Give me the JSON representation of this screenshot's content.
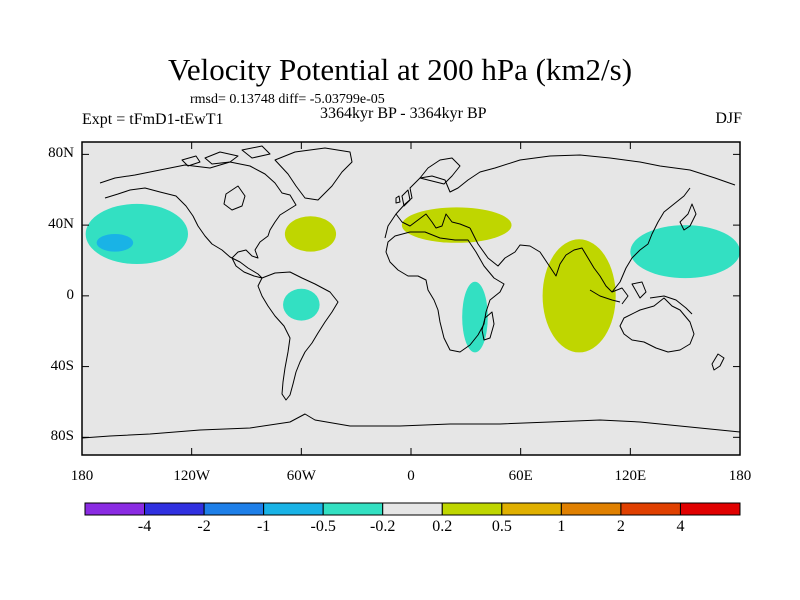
{
  "title": "Velocity Potential at 200 hPa (km2/s)",
  "stats": "rmsd= 0.13748 diff= -5.03799e-05",
  "experiment": "Expt = tFmD1-tEwT1",
  "period": "3364kyr BP - 3364kyr BP",
  "season": "DJF",
  "map": {
    "background_color": "#e6e6e6",
    "lat_ticks": [
      {
        "label": "80N",
        "lat": 80
      },
      {
        "label": "40N",
        "lat": 40
      },
      {
        "label": "0",
        "lat": 0
      },
      {
        "label": "40S",
        "lat": -40
      },
      {
        "label": "80S",
        "lat": -80
      }
    ],
    "lon_ticks": [
      {
        "label": "180",
        "lon": -180
      },
      {
        "label": "120W",
        "lon": -120
      },
      {
        "label": "60W",
        "lon": -60
      },
      {
        "label": "0",
        "lon": 0
      },
      {
        "label": "60E",
        "lon": 60
      },
      {
        "label": "120E",
        "lon": 120
      },
      {
        "label": "180",
        "lon": 180
      }
    ],
    "anomalies": [
      {
        "name": "north-pacific-negative",
        "lon": -150,
        "lat": 35,
        "rlon": 28,
        "rlat": 17,
        "level": "-0.5 to -0.2",
        "color": "#33e0c2"
      },
      {
        "name": "north-pacific-core",
        "lon": -162,
        "lat": 30,
        "rlon": 10,
        "rlat": 5,
        "level": "-1 to -0.5",
        "color": "#19b3e6"
      },
      {
        "name": "north-atlantic-positive",
        "lon": -55,
        "lat": 35,
        "rlon": 14,
        "rlat": 10,
        "level": "0.2 to 0.5",
        "color": "#bfd600"
      },
      {
        "name": "south-america-negative",
        "lon": -60,
        "lat": -5,
        "rlon": 10,
        "rlat": 9,
        "level": "-0.5 to -0.2",
        "color": "#33e0c2"
      },
      {
        "name": "mediterranean-positive",
        "lon": 25,
        "lat": 40,
        "rlon": 30,
        "rlat": 10,
        "level": "0.2 to 0.5",
        "color": "#bfd600"
      },
      {
        "name": "africa-madagascar-negative",
        "lon": 35,
        "lat": -12,
        "rlon": 7,
        "rlat": 20,
        "level": "-0.5 to -0.2",
        "color": "#33e0c2"
      },
      {
        "name": "indian-ocean-positive",
        "lon": 92,
        "lat": 0,
        "rlon": 20,
        "rlat": 32,
        "level": "0.2 to 0.5",
        "color": "#bfd600"
      },
      {
        "name": "west-pacific-negative",
        "lon": 150,
        "lat": 25,
        "rlon": 30,
        "rlat": 15,
        "level": "-0.5 to -0.2",
        "color": "#33e0c2"
      }
    ]
  },
  "colorbar": {
    "colors": [
      "#8a2be2",
      "#3030e0",
      "#1e7fe8",
      "#19b3e6",
      "#33e0c2",
      "#e6e6e6",
      "#bfd600",
      "#e0b000",
      "#e08000",
      "#e04000",
      "#e00000"
    ],
    "labels": [
      "-4",
      "-2",
      "-1",
      "-0.5",
      "-0.2",
      "0.2",
      "0.5",
      "1",
      "2",
      "4"
    ]
  }
}
